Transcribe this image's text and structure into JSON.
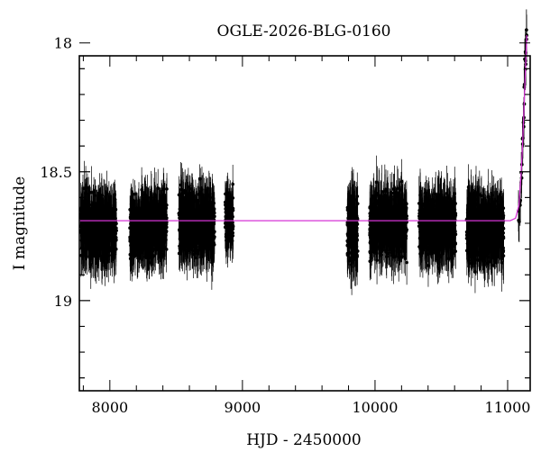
{
  "chart_data": {
    "type": "scatter",
    "title": "OGLE-2026-BLG-0160",
    "xlabel": "HJD - 2450000",
    "ylabel": "I magnitude",
    "xlim": [
      7770,
      11170
    ],
    "ylim": [
      19.35,
      18.05
    ],
    "y_inverted": true,
    "grid": false,
    "legend": "none",
    "xticks": [
      8000,
      9000,
      10000,
      11000
    ],
    "xtick_labels": [
      "8000",
      "9000",
      "10000",
      "11000"
    ],
    "yticks": [
      18,
      18.5,
      19
    ],
    "ytick_labels": [
      "18",
      "18.5",
      "19"
    ],
    "baseline_magnitude": 18.69,
    "colors": {
      "points": "#000000",
      "model": "#d633d6"
    },
    "series": [
      {
        "kind": "points_with_errorbars",
        "seasons": [
          {
            "x_range": [
              7780,
              8050
            ],
            "mag_center": 18.72,
            "mag_spread": 0.1,
            "error": 0.09
          },
          {
            "x_range": [
              8150,
              8430
            ],
            "mag_center": 18.71,
            "mag_spread": 0.1,
            "error": 0.09
          },
          {
            "x_range": [
              8520,
              8790
            ],
            "mag_center": 18.7,
            "mag_spread": 0.1,
            "error": 0.09
          },
          {
            "x_range": [
              8870,
              8930
            ],
            "mag_center": 18.68,
            "mag_spread": 0.08,
            "error": 0.08
          },
          {
            "x_range": [
              9790,
              9870
            ],
            "mag_center": 18.72,
            "mag_spread": 0.1,
            "error": 0.1
          },
          {
            "x_range": [
              9960,
              10240
            ],
            "mag_center": 18.7,
            "mag_spread": 0.1,
            "error": 0.09
          },
          {
            "x_range": [
              10330,
              10610
            ],
            "mag_center": 18.71,
            "mag_spread": 0.1,
            "error": 0.09
          },
          {
            "x_range": [
              10690,
              10970
            ],
            "mag_center": 18.72,
            "mag_spread": 0.1,
            "error": 0.1
          }
        ],
        "rise": [
          {
            "x": 11085,
            "mag": 18.67
          },
          {
            "x": 11095,
            "mag": 18.6
          },
          {
            "x": 11105,
            "mag": 18.5
          },
          {
            "x": 11112,
            "mag": 18.4
          },
          {
            "x": 11120,
            "mag": 18.3
          },
          {
            "x": 11126,
            "mag": 18.2
          },
          {
            "x": 11132,
            "mag": 18.1
          },
          {
            "x": 11137,
            "mag": 18.02
          },
          {
            "x": 11142,
            "mag": 17.98
          }
        ]
      },
      {
        "kind": "model_curve",
        "points": [
          {
            "x": 7770,
            "mag": 18.69
          },
          {
            "x": 11020,
            "mag": 18.69
          },
          {
            "x": 11060,
            "mag": 18.68
          },
          {
            "x": 11085,
            "mag": 18.63
          },
          {
            "x": 11100,
            "mag": 18.52
          },
          {
            "x": 11112,
            "mag": 18.4
          },
          {
            "x": 11124,
            "mag": 18.25
          },
          {
            "x": 11136,
            "mag": 18.08
          },
          {
            "x": 11145,
            "mag": 17.97
          }
        ]
      }
    ]
  }
}
